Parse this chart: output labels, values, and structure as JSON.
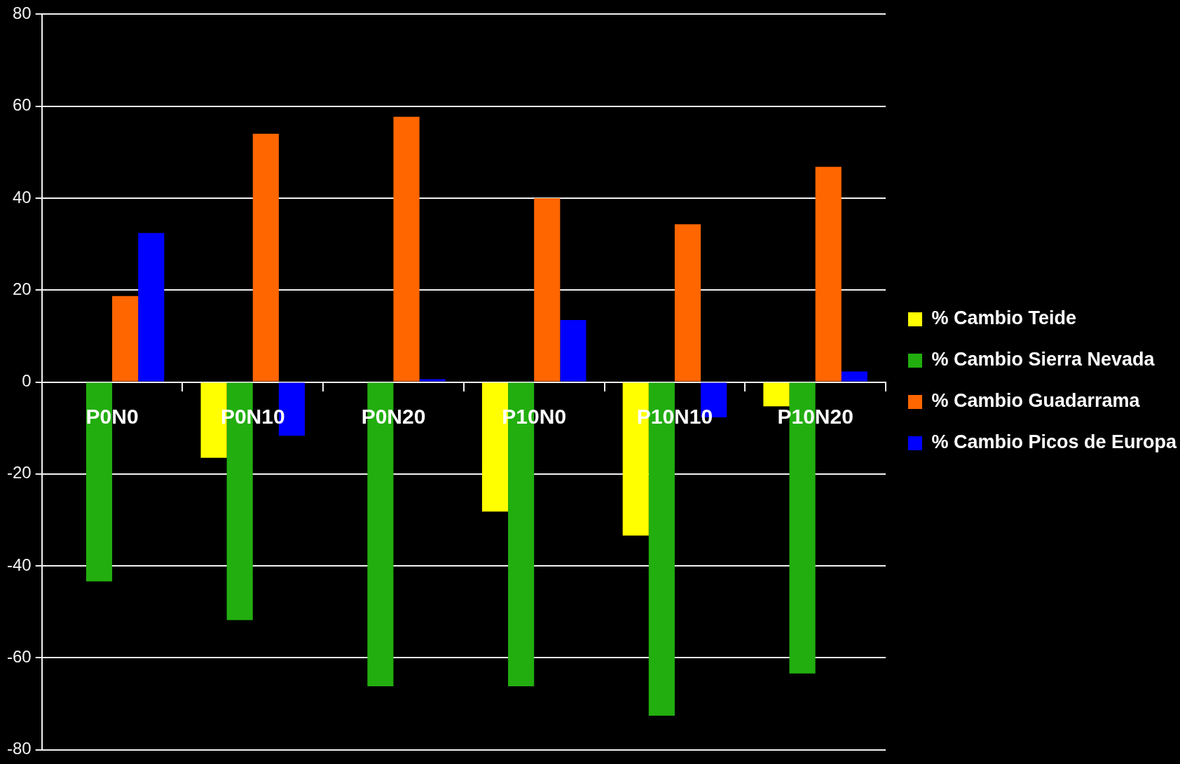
{
  "chart_data": {
    "type": "bar",
    "categories": [
      "P0N0",
      "P0N10",
      "P0N20",
      "P10N0",
      "P10N10",
      "P10N20"
    ],
    "series": [
      {
        "name": "% Cambio Teide",
        "color": "#ffff00",
        "values": [
          null,
          -16.5,
          null,
          -28.2,
          -33.4,
          -5.3
        ]
      },
      {
        "name": "% Cambio Sierra Nevada",
        "color": "#22ae0f",
        "values": [
          -43.4,
          -51.8,
          -66.2,
          -66.2,
          -72.6,
          -63.4
        ]
      },
      {
        "name": "% Cambio Guadarrama",
        "color": "#ff6600",
        "values": [
          18.7,
          54.0,
          57.7,
          40.0,
          34.3,
          46.8
        ]
      },
      {
        "name": "% Cambio Picos de Europa",
        "color": "#0000ff",
        "values": [
          32.4,
          -11.7,
          0.6,
          13.5,
          -7.7,
          2.3
        ]
      }
    ],
    "ylim": [
      -80,
      80
    ],
    "yticks": [
      -80,
      -60,
      -40,
      -20,
      0,
      20,
      40,
      60,
      80
    ],
    "grid": "y",
    "legend": "right"
  }
}
